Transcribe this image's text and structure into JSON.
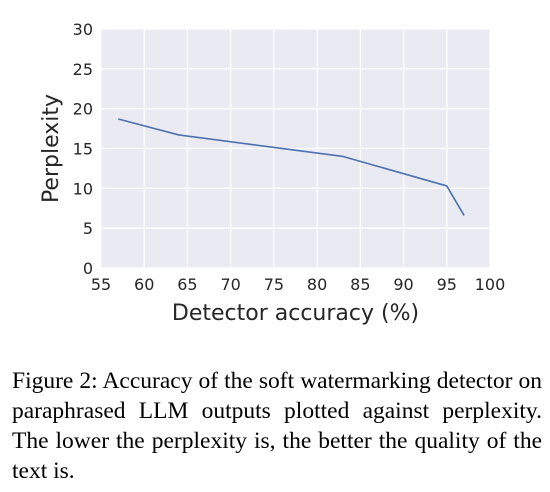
{
  "chart_data": {
    "type": "line",
    "xlabel": "Detector accuracy (%)",
    "ylabel": "Perplexity",
    "xlim": [
      55,
      100
    ],
    "ylim": [
      0,
      30
    ],
    "xticks": [
      "55",
      "60",
      "65",
      "70",
      "75",
      "80",
      "85",
      "90",
      "95",
      "100"
    ],
    "yticks": [
      "0",
      "5",
      "10",
      "15",
      "20",
      "25",
      "30"
    ],
    "grid": true,
    "series": [
      {
        "color": "#4c72b0",
        "x": [
          57.0,
          64.0,
          83.0,
          95.0,
          97.0
        ],
        "y": [
          18.7,
          16.7,
          14.0,
          10.3,
          6.6
        ]
      }
    ],
    "background": "#eaeaf2"
  },
  "caption": {
    "text": "Figure 2: Accuracy of the soft watermarking detector on paraphrased LLM outputs plotted against perplexity. The lower the perplexity is, the better the quality of the text is."
  }
}
